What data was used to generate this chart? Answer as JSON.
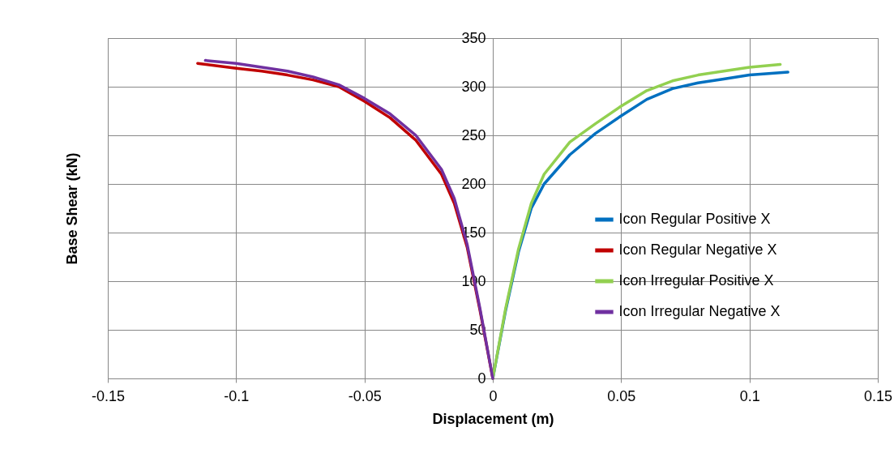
{
  "chart_data": {
    "type": "line",
    "xlabel": "Displacement (m)",
    "ylabel": "Base Shear (kN)",
    "xlim": [
      -0.15,
      0.15
    ],
    "xticks": [
      -0.15,
      -0.1,
      -0.05,
      0,
      0.05,
      0.1,
      0.15
    ],
    "ylim": [
      0,
      350
    ],
    "yticks": [
      0,
      50,
      100,
      150,
      200,
      250,
      300,
      350
    ],
    "grid": true,
    "legend": "right",
    "marker": "none",
    "series": [
      {
        "name": "Icon Regular Positive X",
        "color": "#0070c0",
        "x": [
          0,
          0.005,
          0.01,
          0.015,
          0.02,
          0.03,
          0.04,
          0.05,
          0.06,
          0.07,
          0.08,
          0.09,
          0.1,
          0.115
        ],
        "values": [
          0,
          70,
          130,
          175,
          200,
          230,
          252,
          270,
          287,
          298,
          304,
          308,
          312,
          315
        ]
      },
      {
        "name": "Icon Regular Negative X",
        "color": "#c00000",
        "x": [
          0,
          -0.005,
          -0.01,
          -0.015,
          -0.02,
          -0.03,
          -0.04,
          -0.05,
          -0.06,
          -0.07,
          -0.08,
          -0.09,
          -0.1,
          -0.115
        ],
        "values": [
          0,
          70,
          135,
          180,
          210,
          245,
          268,
          285,
          300,
          307,
          312,
          316,
          319,
          324
        ]
      },
      {
        "name": "Icon Irregular Positive X",
        "color": "#92d050",
        "x": [
          0,
          0.005,
          0.01,
          0.015,
          0.02,
          0.03,
          0.04,
          0.05,
          0.06,
          0.07,
          0.08,
          0.09,
          0.1,
          0.112
        ],
        "values": [
          0,
          72,
          133,
          180,
          210,
          243,
          262,
          280,
          296,
          306,
          312,
          316,
          320,
          323
        ]
      },
      {
        "name": "Icon Irregular Negative X",
        "color": "#7030a0",
        "x": [
          0,
          -0.005,
          -0.01,
          -0.015,
          -0.02,
          -0.03,
          -0.04,
          -0.05,
          -0.06,
          -0.07,
          -0.08,
          -0.09,
          -0.1,
          -0.112
        ],
        "values": [
          0,
          72,
          138,
          185,
          215,
          250,
          272,
          288,
          302,
          310,
          316,
          320,
          324,
          327
        ]
      }
    ]
  }
}
